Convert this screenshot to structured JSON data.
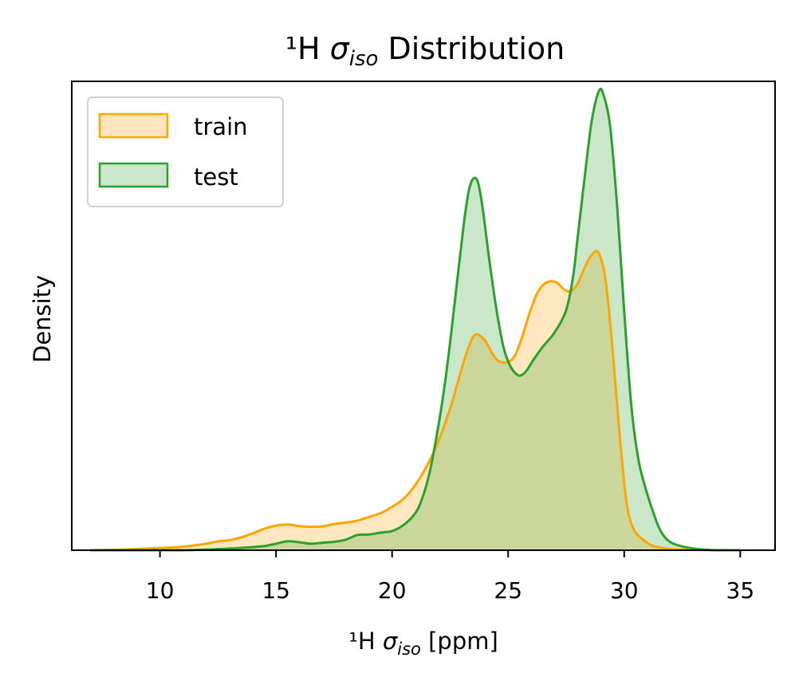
{
  "chart_data": {
    "type": "area",
    "title": {
      "prefix": "¹H ",
      "sigma": "σ",
      "sub": "iso",
      "suffix": " Distribution"
    },
    "xlabel": {
      "prefix": "¹H ",
      "sigma": "σ",
      "sub": "iso",
      "suffix": " [ppm]"
    },
    "ylabel": "Density",
    "xlim": [
      6.2,
      36.5
    ],
    "ylim": [
      0,
      0.2
    ],
    "x_ticks": [
      10,
      15,
      20,
      25,
      30,
      35
    ],
    "grid": false,
    "legend_position": "top-left",
    "series": [
      {
        "name": "train",
        "color": "#FFA500",
        "fill": "#FFE5BF",
        "x": [
          7.0,
          8.0,
          9.0,
          10.0,
          11.0,
          12.0,
          12.5,
          13.0,
          13.5,
          14.0,
          14.5,
          15.0,
          15.5,
          16.0,
          16.5,
          17.0,
          17.5,
          18.0,
          18.5,
          19.0,
          19.5,
          20.0,
          20.5,
          21.0,
          21.5,
          22.0,
          22.5,
          22.8,
          23.0,
          23.3,
          23.6,
          24.0,
          24.3,
          24.6,
          25.0,
          25.3,
          25.6,
          25.9,
          26.2,
          26.5,
          26.8,
          27.1,
          27.4,
          27.7,
          28.0,
          28.3,
          28.6,
          28.9,
          29.2,
          29.5,
          29.8,
          30.1,
          30.4,
          30.8,
          31.2,
          31.6,
          32.0,
          33.0,
          34.0,
          35.0
        ],
        "y": [
          0.0,
          0.0002,
          0.0005,
          0.001,
          0.0015,
          0.0028,
          0.0038,
          0.0043,
          0.0055,
          0.0072,
          0.0092,
          0.0105,
          0.011,
          0.0103,
          0.01,
          0.0102,
          0.0112,
          0.0118,
          0.0126,
          0.0142,
          0.0158,
          0.0185,
          0.022,
          0.0278,
          0.036,
          0.0465,
          0.0605,
          0.0705,
          0.0775,
          0.0868,
          0.092,
          0.0895,
          0.0842,
          0.0806,
          0.0803,
          0.0832,
          0.0908,
          0.1004,
          0.1086,
          0.1131,
          0.1147,
          0.1141,
          0.1113,
          0.1105,
          0.1138,
          0.1206,
          0.126,
          0.1268,
          0.115,
          0.0855,
          0.0496,
          0.0204,
          0.0092,
          0.0046,
          0.002,
          0.0011,
          0.0005,
          0.0002,
          0.0,
          0.0
        ]
      },
      {
        "name": "test",
        "color": "#2CA02C",
        "fill": "#CCE7CC",
        "x": [
          7.0,
          9.0,
          11.0,
          12.5,
          13.5,
          14.5,
          15.0,
          15.5,
          16.0,
          16.5,
          17.0,
          17.5,
          18.0,
          18.5,
          19.0,
          19.5,
          20.0,
          20.5,
          21.0,
          21.3,
          21.6,
          21.9,
          22.2,
          22.5,
          22.8,
          23.1,
          23.3,
          23.5,
          23.7,
          23.9,
          24.2,
          24.5,
          24.8,
          25.1,
          25.4,
          25.6,
          25.8,
          26.1,
          26.5,
          27.0,
          27.5,
          27.8,
          28.0,
          28.3,
          28.6,
          28.9,
          29.1,
          29.4,
          29.7,
          30.0,
          30.3,
          30.6,
          30.9,
          31.2,
          31.5,
          31.8,
          32.2,
          33.0,
          34.0,
          35.0
        ],
        "y": [
          0.0,
          0.0,
          0.0,
          0.0005,
          0.001,
          0.0018,
          0.0028,
          0.0038,
          0.0034,
          0.0028,
          0.0032,
          0.0036,
          0.0045,
          0.0065,
          0.0067,
          0.0075,
          0.0082,
          0.0108,
          0.0158,
          0.0222,
          0.0325,
          0.0476,
          0.0658,
          0.0887,
          0.1145,
          0.1399,
          0.1531,
          0.1585,
          0.1569,
          0.1461,
          0.1229,
          0.1025,
          0.0867,
          0.0784,
          0.0748,
          0.0748,
          0.0767,
          0.0814,
          0.0869,
          0.0929,
          0.1024,
          0.1169,
          0.1339,
          0.1593,
          0.183,
          0.1956,
          0.1945,
          0.1804,
          0.1461,
          0.1018,
          0.0625,
          0.0393,
          0.0271,
          0.0177,
          0.0096,
          0.005,
          0.0025,
          0.0007,
          0.0,
          0.0
        ]
      }
    ]
  }
}
